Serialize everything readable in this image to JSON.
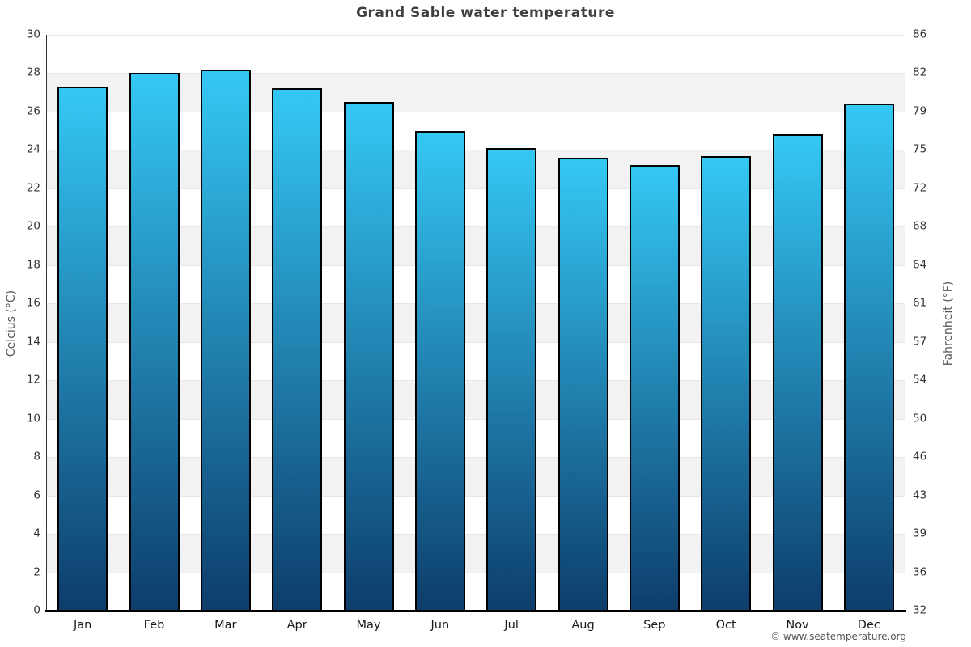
{
  "footer": "© www.seatemperature.org",
  "chart_data": {
    "type": "bar",
    "title": "Grand Sable water temperature",
    "categories": [
      "Jan",
      "Feb",
      "Mar",
      "Apr",
      "May",
      "Jun",
      "Jul",
      "Aug",
      "Sep",
      "Oct",
      "Nov",
      "Dec"
    ],
    "values": [
      27.3,
      28.0,
      28.2,
      27.2,
      26.5,
      25.0,
      24.1,
      23.6,
      23.2,
      23.7,
      24.8,
      26.4
    ],
    "unit": "°C",
    "ylabel_left": "Celcius (°C)",
    "ylabel_right": "Fahrenheit (°F)",
    "ylim_left": [
      0,
      30
    ],
    "ylim_right": [
      32,
      86
    ],
    "yticks_left": [
      30,
      28,
      26,
      24,
      22,
      20,
      18,
      16,
      14,
      12,
      10,
      8,
      6,
      4,
      2,
      0
    ],
    "yticks_right": [
      86,
      82,
      79,
      75,
      72,
      68,
      64,
      61,
      57,
      54,
      50,
      46,
      43,
      39,
      36,
      32
    ],
    "legend_position": "none",
    "grid": "alternating-horizontal-bands",
    "colors": {
      "bar_gradient_top": "#35c8f5",
      "bar_gradient_bottom": "#0d3d6b",
      "bar_border": "#000000",
      "band_gray": "#f2f2f2",
      "band_white": "#ffffff",
      "grid_line": "#e7e7e7",
      "axis_line": "#333333",
      "bottom_axis": "#000000",
      "title_text": "#3f3f3f",
      "tick_text": "#333333",
      "axis_title_text": "#555555",
      "footer_text": "#555555"
    }
  }
}
